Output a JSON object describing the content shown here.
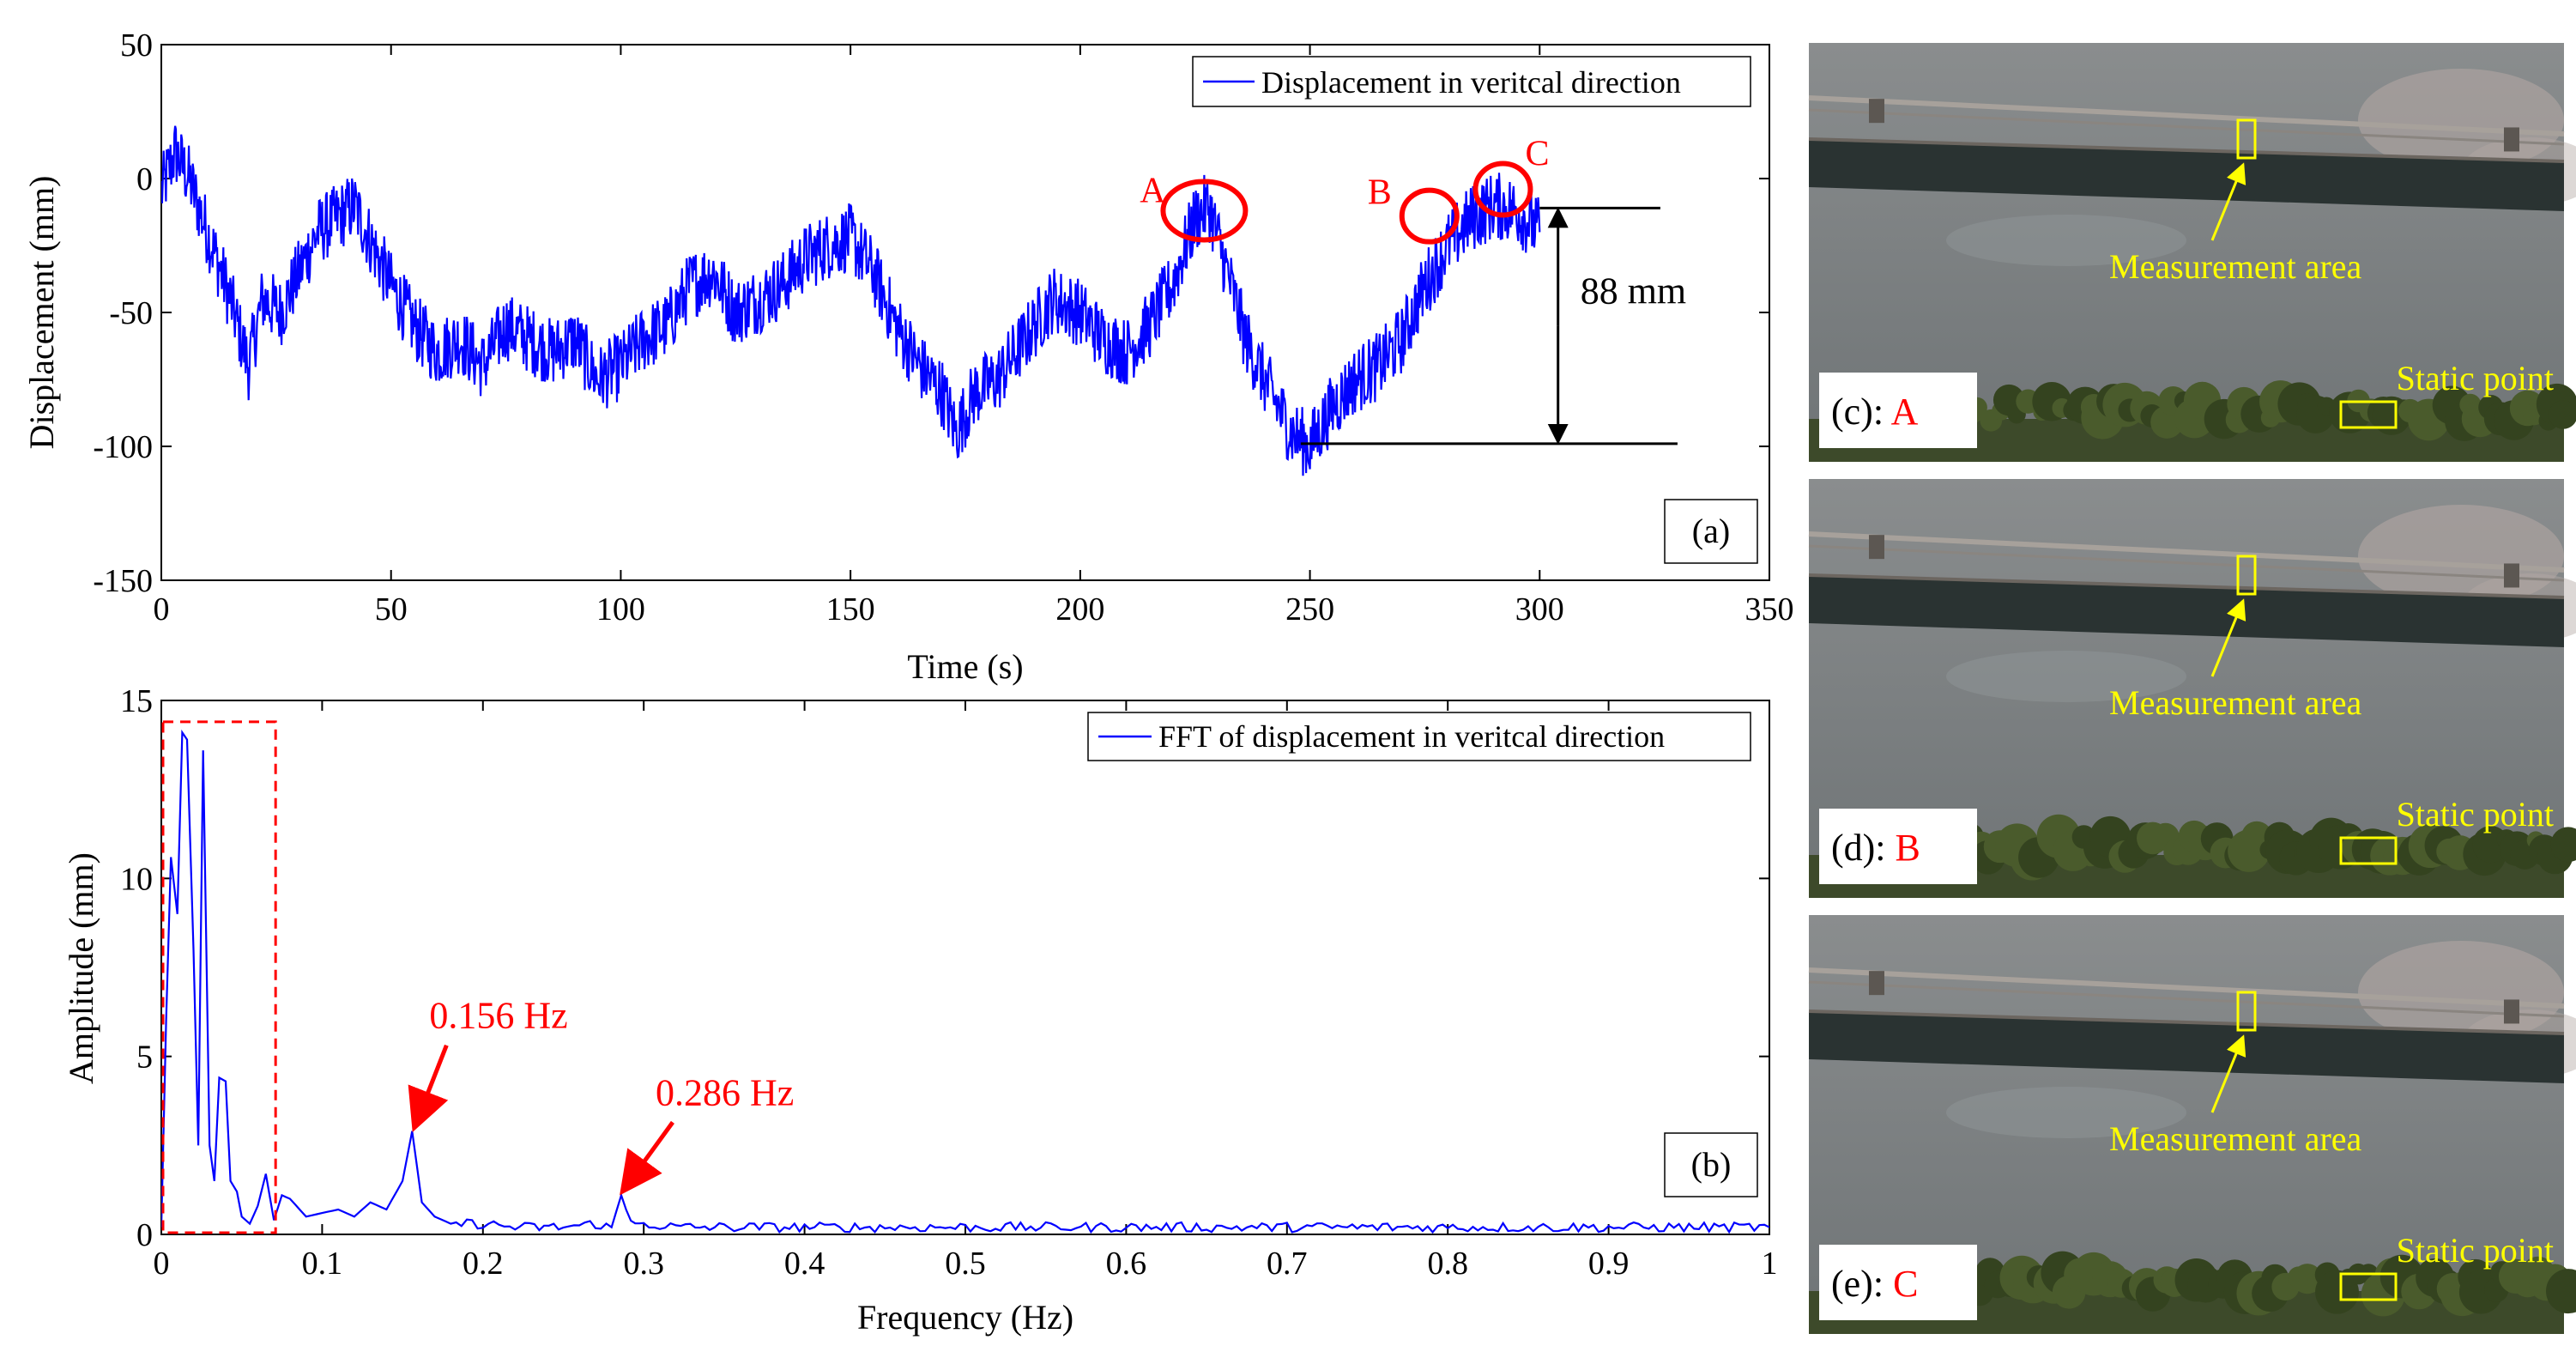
{
  "colors": {
    "series": "#0000ff",
    "annotation": "#ff0000",
    "marker": "#ffff00",
    "axis": "#000000"
  },
  "chart_data": [
    {
      "type": "line",
      "panel_label": "(a)",
      "xlabel": "Time (s)",
      "ylabel": "Displacement (mm)",
      "xlim": [
        0,
        350
      ],
      "ylim": [
        -150,
        50
      ],
      "xticks": [
        0,
        50,
        100,
        150,
        200,
        250,
        300,
        350
      ],
      "yticks": [
        -150,
        -100,
        -50,
        0,
        50
      ],
      "legend": {
        "position": "top-right",
        "entries": [
          "Displacement in veritcal direction"
        ]
      },
      "series": [
        {
          "name": "Displacement in veritcal direction",
          "x": [
            0,
            3,
            6,
            10,
            15,
            19,
            22,
            26,
            30,
            34,
            38,
            42,
            46,
            50,
            55,
            60,
            65,
            70,
            75,
            80,
            85,
            90,
            95,
            100,
            105,
            110,
            115,
            120,
            125,
            130,
            135,
            140,
            145,
            150,
            155,
            160,
            165,
            170,
            173,
            177,
            182,
            188,
            194,
            200,
            205,
            210,
            215,
            220,
            225,
            228,
            232,
            236,
            240,
            243,
            246,
            250,
            255,
            260,
            265,
            270,
            275,
            280,
            285,
            290,
            295,
            300
          ],
          "y": [
            -5,
            10,
            0,
            -20,
            -45,
            -70,
            -45,
            -50,
            -35,
            -20,
            -15,
            -10,
            -25,
            -40,
            -55,
            -65,
            -60,
            -70,
            -55,
            -60,
            -65,
            -60,
            -75,
            -70,
            -60,
            -55,
            -40,
            -35,
            -50,
            -45,
            -40,
            -30,
            -25,
            -22,
            -35,
            -55,
            -70,
            -80,
            -95,
            -80,
            -75,
            -60,
            -45,
            -50,
            -60,
            -65,
            -55,
            -40,
            -15,
            -10,
            -35,
            -60,
            -75,
            -85,
            -95,
            -100,
            -85,
            -75,
            -70,
            -60,
            -40,
            -25,
            -15,
            -10,
            -12,
            -20
          ]
        }
      ],
      "annotations": [
        {
          "label": "A",
          "x": 227,
          "y": -12
        },
        {
          "label": "B",
          "x": 276,
          "y": -14
        },
        {
          "label": "C",
          "x": 292,
          "y": -4
        }
      ],
      "range_label": "88 mm",
      "range_y": [
        -11,
        -99
      ]
    },
    {
      "type": "line",
      "panel_label": "(b)",
      "xlabel": "Frequency (Hz)",
      "ylabel": "Amplitude (mm)",
      "xlim": [
        0,
        1
      ],
      "ylim": [
        0,
        15
      ],
      "xticks": [
        0,
        0.1,
        0.2,
        0.3,
        0.4,
        0.5,
        0.6,
        0.7,
        0.8,
        0.9,
        1
      ],
      "yticks": [
        0,
        5,
        10,
        15
      ],
      "legend": {
        "position": "top-right",
        "entries": [
          "FFT of displacement in veritcal direction"
        ]
      },
      "series": [
        {
          "name": "FFT of displacement in veritcal direction",
          "x": [
            0,
            0.003,
            0.006,
            0.01,
            0.013,
            0.016,
            0.02,
            0.023,
            0.026,
            0.03,
            0.033,
            0.036,
            0.04,
            0.043,
            0.047,
            0.05,
            0.055,
            0.06,
            0.065,
            0.07,
            0.075,
            0.08,
            0.09,
            0.1,
            0.11,
            0.12,
            0.13,
            0.14,
            0.15,
            0.156,
            0.162,
            0.17,
            0.18,
            0.2,
            0.22,
            0.25,
            0.27,
            0.28,
            0.286,
            0.292,
            0.3,
            0.32,
            0.35,
            0.4,
            0.45,
            0.5,
            0.55,
            0.6,
            0.65,
            0.7,
            0.75,
            0.8,
            0.85,
            0.9,
            0.95,
            1.0
          ],
          "y": [
            0.2,
            6,
            10.6,
            9,
            14.1,
            13.9,
            8,
            2.5,
            13.6,
            2.5,
            1.5,
            4.4,
            4.3,
            1.5,
            1.2,
            0.5,
            0.3,
            0.8,
            1.7,
            0.4,
            1.1,
            1.0,
            0.5,
            0.6,
            0.7,
            0.5,
            0.9,
            0.7,
            1.5,
            2.9,
            0.9,
            0.5,
            0.3,
            0.3,
            0.2,
            0.2,
            0.3,
            0.2,
            1.1,
            0.3,
            0.3,
            0.2,
            0.2,
            0.2,
            0.2,
            0.2,
            0.2,
            0.2,
            0.2,
            0.2,
            0.2,
            0.2,
            0.2,
            0.2,
            0.2,
            0.2
          ]
        }
      ],
      "annotations": [
        {
          "label": "0.156 Hz",
          "x": 0.156,
          "y": 2.9
        },
        {
          "label": "0.286 Hz",
          "x": 0.286,
          "y": 1.1
        }
      ],
      "highlight_box": {
        "x": [
          0,
          0.07
        ],
        "y": [
          0,
          14.4
        ]
      }
    }
  ],
  "photos": [
    {
      "label_prefix": "(c): ",
      "label_point": "A",
      "measurement_label": "Measurement area",
      "static_label": "Static point"
    },
    {
      "label_prefix": "(d): ",
      "label_point": "B",
      "measurement_label": "Measurement area",
      "static_label": "Static point"
    },
    {
      "label_prefix": "(e): ",
      "label_point": "C",
      "measurement_label": "Measurement area",
      "static_label": "Static point"
    }
  ]
}
